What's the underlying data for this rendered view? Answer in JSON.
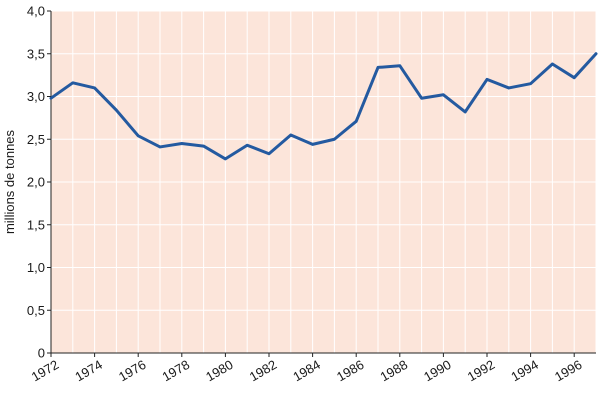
{
  "chart_data": {
    "type": "line",
    "title": "",
    "xlabel": "",
    "ylabel": "millions de tonnes",
    "xlim": [
      1972,
      1997
    ],
    "ylim": [
      0,
      4.0
    ],
    "grid": true,
    "y_ticks": [
      "0",
      "0,5",
      "1,0",
      "1,5",
      "2,0",
      "2,5",
      "3,0",
      "3,5",
      "4,0"
    ],
    "x_ticks": [
      "1972",
      "1974",
      "1976",
      "1978",
      "1980",
      "1982",
      "1984",
      "1986",
      "1988",
      "1990",
      "1992",
      "1994",
      "1996"
    ],
    "x": [
      1972,
      1973,
      1974,
      1975,
      1976,
      1977,
      1978,
      1979,
      1980,
      1981,
      1982,
      1983,
      1984,
      1985,
      1986,
      1987,
      1988,
      1989,
      1990,
      1991,
      1992,
      1993,
      1994,
      1995,
      1996,
      1997
    ],
    "series": [
      {
        "values": [
          2.98,
          3.16,
          3.1,
          2.84,
          2.54,
          2.41,
          2.45,
          2.42,
          2.27,
          2.43,
          2.33,
          2.55,
          2.44,
          2.5,
          2.71,
          3.34,
          3.36,
          2.98,
          3.02,
          2.82,
          3.2,
          3.1,
          3.15,
          3.38,
          3.22,
          3.5
        ]
      }
    ],
    "colors": {
      "background": "#fce5da",
      "grid": "#ffffff",
      "line": "#245aa0"
    }
  }
}
